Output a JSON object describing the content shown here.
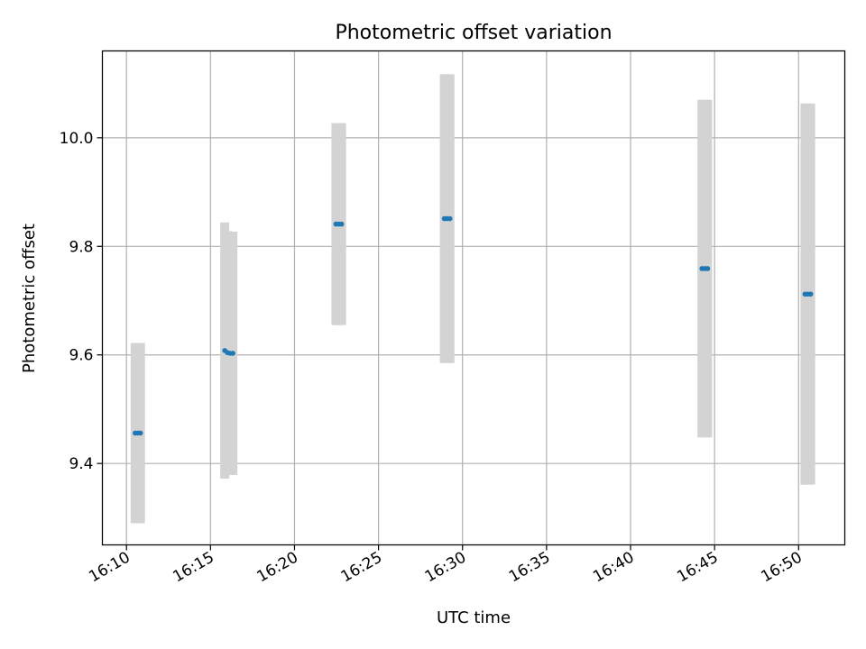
{
  "chart_data": {
    "type": "scatter",
    "title": "Photometric offset variation",
    "xlabel": "UTC time",
    "ylabel": "Photometric offset",
    "x_ticks": [
      "16:10",
      "16:15",
      "16:20",
      "16:25",
      "16:30",
      "16:35",
      "16:40",
      "16:45",
      "16:50"
    ],
    "y_ticks": [
      "9.4",
      "9.6",
      "9.8",
      "10.0"
    ],
    "xlim": [
      "16:08:34",
      "16:52:45"
    ],
    "ylim": [
      9.25,
      10.16
    ],
    "grid": true,
    "colors": {
      "points": "#1f77b4",
      "error_bars": "#d3d3d3",
      "grid": "#b0b0b0"
    },
    "series": [
      {
        "points": [
          {
            "time": "16:10:31",
            "y": 9.456,
            "yerr": 0.166
          },
          {
            "time": "16:10:41",
            "y": 9.456,
            "yerr": 0.166
          },
          {
            "time": "16:10:50",
            "y": 9.456,
            "yerr": 0.166
          },
          {
            "time": "16:15:51",
            "y": 9.608,
            "yerr": 0.236
          },
          {
            "time": "16:16:01",
            "y": 9.604,
            "yerr": 0.224
          },
          {
            "time": "16:16:10",
            "y": 9.603,
            "yerr": 0.224
          },
          {
            "time": "16:16:20",
            "y": 9.603,
            "yerr": 0.224
          },
          {
            "time": "16:22:28",
            "y": 9.841,
            "yerr": 0.186
          },
          {
            "time": "16:22:38",
            "y": 9.841,
            "yerr": 0.186
          },
          {
            "time": "16:22:48",
            "y": 9.841,
            "yerr": 0.186
          },
          {
            "time": "16:28:55",
            "y": 9.851,
            "yerr": 0.266
          },
          {
            "time": "16:29:05",
            "y": 9.851,
            "yerr": 0.266
          },
          {
            "time": "16:29:15",
            "y": 9.851,
            "yerr": 0.266
          },
          {
            "time": "16:44:15",
            "y": 9.759,
            "yerr": 0.311
          },
          {
            "time": "16:44:25",
            "y": 9.759,
            "yerr": 0.311
          },
          {
            "time": "16:44:35",
            "y": 9.759,
            "yerr": 0.311
          },
          {
            "time": "16:50:23",
            "y": 9.712,
            "yerr": 0.351
          },
          {
            "time": "16:50:33",
            "y": 9.712,
            "yerr": 0.351
          },
          {
            "time": "16:50:43",
            "y": 9.712,
            "yerr": 0.351
          }
        ]
      }
    ]
  }
}
